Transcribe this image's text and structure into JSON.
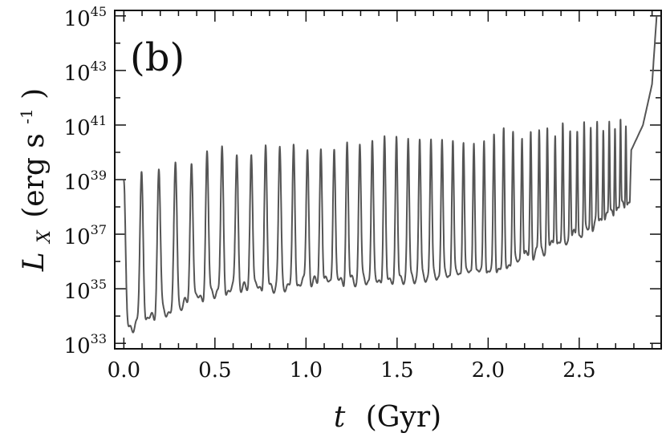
{
  "chart_data": {
    "type": "line",
    "panel_label": "(b)",
    "xlabel_var": "t",
    "xlabel_unit": "(Gyr)",
    "ylabel_var": "L",
    "ylabel_sub": "X",
    "ylabel_unit": "(erg s",
    "ylabel_unit_exp": "-1",
    "ylabel_close": ")",
    "xlim": [
      -0.05,
      2.95
    ],
    "ylim_log10": [
      32.8,
      45.2
    ],
    "y_scale": "log",
    "x_ticks": [
      {
        "value": 0.0,
        "label": "0.0"
      },
      {
        "value": 0.5,
        "label": "0.5"
      },
      {
        "value": 1.0,
        "label": "1.0"
      },
      {
        "value": 1.5,
        "label": "1.5"
      },
      {
        "value": 2.0,
        "label": "2.0"
      },
      {
        "value": 2.5,
        "label": "2.5"
      }
    ],
    "y_ticks": [
      {
        "value": 33,
        "base": "10",
        "exp": "33"
      },
      {
        "value": 35,
        "base": "10",
        "exp": "35"
      },
      {
        "value": 37,
        "base": "10",
        "exp": "37"
      },
      {
        "value": 39,
        "base": "10",
        "exp": "39"
      },
      {
        "value": 41,
        "base": "10",
        "exp": "41"
      },
      {
        "value": 43,
        "base": "10",
        "exp": "43"
      },
      {
        "value": 45,
        "base": "10",
        "exp": "45"
      }
    ],
    "series": [
      {
        "line_color": "#555555",
        "period_gyr": [
          0.1,
          0.082,
          0.075,
          0.055,
          0.038,
          0.028
        ],
        "x": [
          0.0,
          0.5,
          1.0,
          2.0,
          2.5,
          2.78
        ],
        "peak_log10": [
          39.0,
          40.0,
          40.2,
          40.6,
          40.9,
          41.2
        ],
        "trough_log10": [
          33.5,
          34.9,
          35.2,
          35.6,
          37.0,
          38.2
        ],
        "final_rise": {
          "x": [
            2.78,
            2.85,
            2.9,
            2.925
          ],
          "log10_Lx": [
            40.0,
            41.0,
            42.5,
            45.0
          ]
        }
      }
    ]
  }
}
